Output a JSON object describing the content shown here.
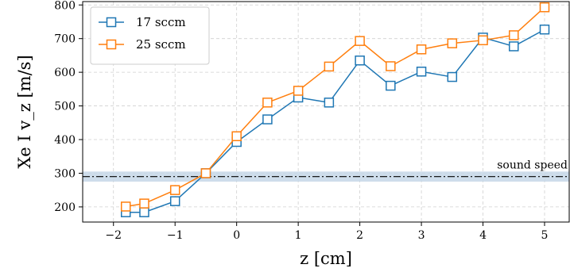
{
  "chart_data": {
    "type": "line",
    "xlabel": "z [cm]",
    "ylabel": "Xe I v_z [m/s]",
    "xlim": [
      -2.5,
      5.4
    ],
    "ylim": [
      155,
      810
    ],
    "xticks": [
      -2,
      -1,
      0,
      1,
      2,
      3,
      4,
      5
    ],
    "xtick_labels": [
      "−2",
      "−1",
      "0",
      "1",
      "2",
      "3",
      "4",
      "5"
    ],
    "yticks": [
      200,
      300,
      400,
      500,
      600,
      700,
      800
    ],
    "ytick_labels": [
      "200",
      "300",
      "400",
      "500",
      "600",
      "700",
      "800"
    ],
    "grid": true,
    "legend_position": "top-left",
    "x": [
      -1.8,
      -1.5,
      -1.0,
      -0.5,
      0.0,
      0.5,
      1.0,
      1.5,
      2.0,
      2.5,
      3.0,
      3.5,
      4.0,
      4.5,
      5.0
    ],
    "series": [
      {
        "name": "17 sccm",
        "color": "#1f77b4",
        "marker": "open-square",
        "values": [
          184,
          184,
          217,
          300,
          393,
          460,
          525,
          510,
          635,
          560,
          602,
          586,
          703,
          677,
          727
        ]
      },
      {
        "name": "25 sccm",
        "color": "#ff7f0e",
        "marker": "open-square",
        "values": [
          201,
          210,
          250,
          300,
          410,
          510,
          545,
          617,
          693,
          618,
          668,
          686,
          695,
          710,
          793
        ]
      }
    ],
    "reference_line": {
      "label": "sound speed",
      "value": 290,
      "band": [
        275,
        305
      ],
      "color": "#000000",
      "band_color": "#c6d7e8",
      "style": "dash-dot"
    }
  }
}
